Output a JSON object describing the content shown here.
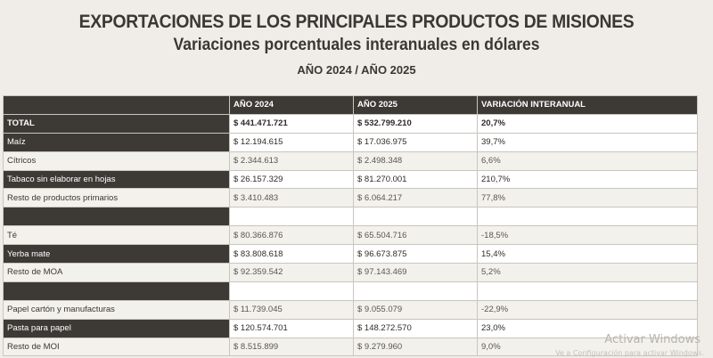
{
  "header": {
    "title": "EXPORTACIONES DE LOS PRINCIPALES PRODUCTOS DE MISIONES",
    "subtitle": "Variaciones porcentuales interanuales en dólares",
    "period": "AÑO 2024 / AÑO 2025"
  },
  "table": {
    "columns": [
      "",
      "AÑO 2024",
      "AÑO 2025",
      "VARIACIÓN INTERANUAL"
    ],
    "rows": [
      {
        "label": "TOTAL",
        "y2024": "$ 441.471.721",
        "y2025": "$ 532.799.210",
        "var": "20,7%"
      },
      {
        "label": "Maíz",
        "y2024": "$ 12.194.615",
        "y2025": "$ 17.036.975",
        "var": "39,7%"
      },
      {
        "label": "Cítricos",
        "y2024": "$ 2.344.613",
        "y2025": "$ 2.498.348",
        "var": "6,6%"
      },
      {
        "label": "Tabaco sin elaborar en hojas",
        "y2024": "$ 26.157.329",
        "y2025": "$ 81.270.001",
        "var": "210,7%"
      },
      {
        "label": "Resto de productos primarios",
        "y2024": "$ 3.410.483",
        "y2025": "$ 6.064.217",
        "var": "77,8%"
      },
      {
        "label": "",
        "y2024": "",
        "y2025": "",
        "var": ""
      },
      {
        "label": "Té",
        "y2024": "$ 80.366.876",
        "y2025": "$ 65.504.716",
        "var": "-18,5%"
      },
      {
        "label": "Yerba mate",
        "y2024": "$ 83.808.618",
        "y2025": "$ 96.673.875",
        "var": "15,4%"
      },
      {
        "label": "Resto de MOA",
        "y2024": "$ 92.359.542",
        "y2025": "$ 97.143.469",
        "var": "5,2%"
      },
      {
        "label": "",
        "y2024": "",
        "y2025": "",
        "var": ""
      },
      {
        "label": "Papel cartón y manufacturas",
        "y2024": "$ 11.739.045",
        "y2025": "$ 9.055.079",
        "var": "-22,9%"
      },
      {
        "label": "Pasta para papel",
        "y2024": "$ 120.574.701",
        "y2025": "$ 148.272.570",
        "var": "23,0%"
      },
      {
        "label": "Resto de MOI",
        "y2024": "$ 8.515.899",
        "y2025": "$ 9.279.960",
        "var": "9,0%"
      }
    ]
  },
  "watermark": {
    "line1": "Activar Windows",
    "line2": "Ve a Configuración para activar Windows."
  }
}
